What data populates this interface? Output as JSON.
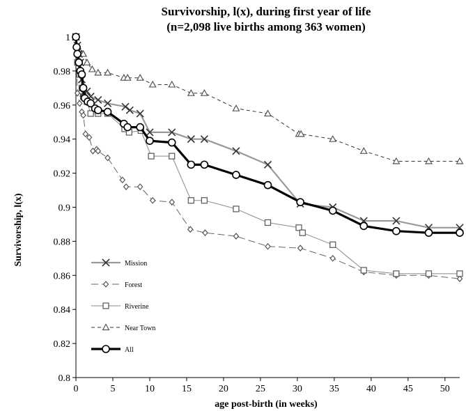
{
  "chart_data": {
    "type": "line",
    "title": "Survivorship, l(x), during first year of life",
    "subtitle": "(n=2,098 live births among 363 women)",
    "xlabel": "age post-birth (in weeks)",
    "ylabel": "Survivorship, l(x)",
    "xlim": [
      0,
      52
    ],
    "ylim": [
      0.8,
      1.0
    ],
    "x_ticks": [
      0,
      5,
      10,
      15,
      20,
      25,
      30,
      35,
      40,
      45,
      50
    ],
    "y_ticks": [
      0.8,
      0.82,
      0.84,
      0.86,
      0.88,
      0.9,
      0.92,
      0.94,
      0.96,
      0.98,
      1
    ],
    "y_tick_labels": [
      "0.8",
      "0.82",
      "0.84",
      "0.86",
      "0.88",
      "0.9",
      "0.92",
      "0.94",
      "0.96",
      "0.98",
      "1"
    ],
    "grid": false,
    "legend_position": "bottom-left",
    "series": [
      {
        "name": "Mission",
        "marker": "x",
        "color": "#999999",
        "dash": "solid",
        "x": [
          0,
          0.2,
          0.4,
          0.6,
          0.8,
          1,
          1.5,
          2,
          3,
          4.3,
          6.7,
          7.3,
          8.7,
          10,
          13,
          15.6,
          17.4,
          21.7,
          26,
          30.4,
          34.8,
          39,
          43.4,
          47.8,
          52
        ],
        "y": [
          1.0,
          0.995,
          0.99,
          0.985,
          0.975,
          0.967,
          0.968,
          0.965,
          0.963,
          0.961,
          0.959,
          0.957,
          0.955,
          0.944,
          0.944,
          0.94,
          0.94,
          0.933,
          0.925,
          0.902,
          0.9,
          0.892,
          0.892,
          0.888,
          0.888
        ]
      },
      {
        "name": "Forest",
        "marker": "diamond",
        "color": "#666666",
        "dash": "longdash",
        "x": [
          0,
          0.2,
          0.5,
          0.8,
          1,
          1.3,
          1.8,
          2.3,
          2.8,
          3,
          4.3,
          6.3,
          6.8,
          8.7,
          10.4,
          13,
          15.5,
          17.5,
          21.7,
          26,
          30.4,
          34.8,
          39,
          43.4,
          47.8,
          52
        ],
        "y": [
          1.0,
          0.967,
          0.961,
          0.956,
          0.954,
          0.943,
          0.941,
          0.933,
          0.934,
          0.933,
          0.929,
          0.916,
          0.912,
          0.912,
          0.904,
          0.903,
          0.887,
          0.885,
          0.883,
          0.877,
          0.876,
          0.87,
          0.862,
          0.86,
          0.86,
          0.858
        ]
      },
      {
        "name": "Riverine",
        "marker": "square",
        "color": "#888888",
        "dash": "solid",
        "x": [
          0,
          0.2,
          0.5,
          0.8,
          1,
          1.5,
          2,
          3,
          4.3,
          6.6,
          7.2,
          8.8,
          10.2,
          13,
          15.6,
          17.4,
          21.7,
          26,
          30.2,
          30.7,
          34.8,
          39,
          43.4,
          47.8,
          52
        ],
        "y": [
          1.0,
          0.985,
          0.978,
          0.97,
          0.965,
          0.962,
          0.955,
          0.955,
          0.955,
          0.946,
          0.944,
          0.945,
          0.93,
          0.93,
          0.904,
          0.904,
          0.899,
          0.891,
          0.888,
          0.885,
          0.878,
          0.863,
          0.861,
          0.861,
          0.861
        ]
      },
      {
        "name": "Near Town",
        "marker": "triangle",
        "color": "#333333",
        "dash": "dash",
        "x": [
          0,
          0.3,
          0.6,
          1,
          1.5,
          2.2,
          3,
          4.3,
          6.5,
          7,
          8.7,
          10.4,
          13,
          15.6,
          17.4,
          21.7,
          26,
          30.2,
          30.5,
          34.8,
          39,
          43.4,
          47.8,
          52
        ],
        "y": [
          1.0,
          0.993,
          0.991,
          0.99,
          0.985,
          0.981,
          0.979,
          0.979,
          0.976,
          0.976,
          0.976,
          0.972,
          0.972,
          0.967,
          0.967,
          0.958,
          0.955,
          0.943,
          0.943,
          0.94,
          0.933,
          0.927,
          0.927,
          0.927
        ]
      },
      {
        "name": "All",
        "marker": "circle",
        "color": "#000000",
        "dash": "solid",
        "x": [
          0,
          0.1,
          0.2,
          0.4,
          0.6,
          0.8,
          1,
          1.2,
          1.6,
          2,
          2.6,
          3,
          4.3,
          6.5,
          7,
          8.7,
          10,
          13,
          15.6,
          17.4,
          21.7,
          26,
          30.4,
          34.8,
          39,
          43.4,
          47.8,
          52
        ],
        "y": [
          1.0,
          0.994,
          0.99,
          0.985,
          0.98,
          0.978,
          0.97,
          0.964,
          0.962,
          0.961,
          0.958,
          0.957,
          0.956,
          0.949,
          0.947,
          0.947,
          0.939,
          0.938,
          0.925,
          0.925,
          0.919,
          0.913,
          0.903,
          0.898,
          0.889,
          0.886,
          0.885,
          0.885
        ]
      }
    ]
  }
}
